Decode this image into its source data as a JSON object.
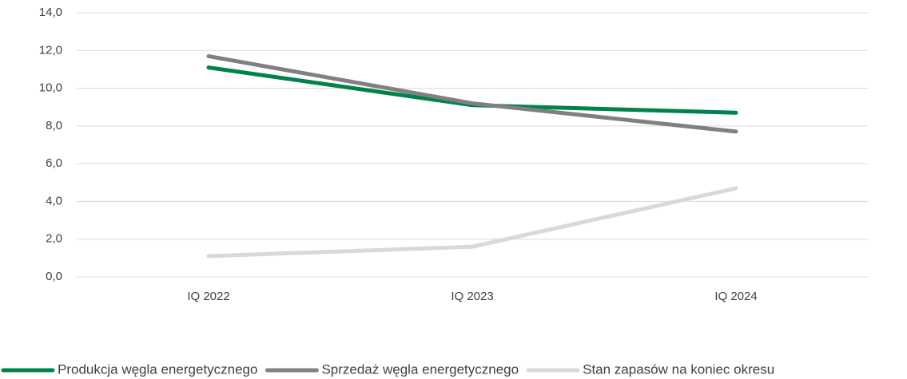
{
  "chart_data": {
    "type": "line",
    "categories": [
      "IQ 2022",
      "IQ 2023",
      "IQ 2024"
    ],
    "series": [
      {
        "name": "Produkcja węgla energetycznego",
        "color": "#00834a",
        "values": [
          11.1,
          9.1,
          8.7
        ]
      },
      {
        "name": "Sprzedaż węgla energetycznego",
        "color": "#808080",
        "values": [
          11.7,
          9.2,
          7.7
        ]
      },
      {
        "name": "Stan zapasów na koniec okresu",
        "color": "#d9d9d9",
        "values": [
          1.1,
          1.6,
          4.7
        ]
      }
    ],
    "ylim": [
      0,
      14
    ],
    "yticks": [
      {
        "value": 0,
        "label": "0,0"
      },
      {
        "value": 2,
        "label": "2,0"
      },
      {
        "value": 4,
        "label": "4,0"
      },
      {
        "value": 6,
        "label": "6,0"
      },
      {
        "value": 8,
        "label": "8,0"
      },
      {
        "value": 10,
        "label": "10,0"
      },
      {
        "value": 12,
        "label": "12,0"
      },
      {
        "value": 14,
        "label": "14,0"
      }
    ],
    "grid": true,
    "legend": "bottom"
  }
}
